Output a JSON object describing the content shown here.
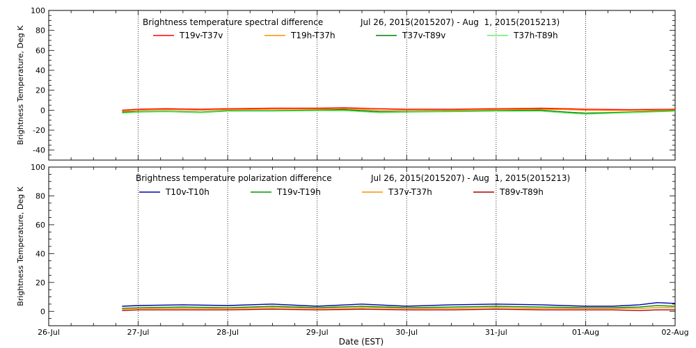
{
  "chart_data": [
    {
      "type": "line",
      "title": "Brightness temperature spectral difference",
      "date_range": "Jul 26, 2015(2015207) - Aug  1, 2015(2015213)",
      "ylabel": "Brightness Temperature, Deg K",
      "xlabel": "",
      "ylim": [
        -50,
        100
      ],
      "yticks": [
        -40,
        -20,
        0,
        20,
        40,
        60,
        80,
        100
      ],
      "xlim": [
        0,
        7
      ],
      "grid": "vertical dotted at day boundaries",
      "legend_position": "top",
      "series": [
        {
          "name": "T19v-T37v",
          "color": "#ff0000",
          "x": [
            0.82,
            1.0,
            1.3,
            1.7,
            2.0,
            2.5,
            3.0,
            3.3,
            3.7,
            4.0,
            4.5,
            5.0,
            5.5,
            5.8,
            6.0,
            6.5,
            7.0
          ],
          "values": [
            0,
            1,
            1.5,
            1,
            1.5,
            2,
            2,
            2.5,
            1.5,
            1,
            1,
            1.5,
            2,
            1.5,
            1,
            0.5,
            1
          ]
        },
        {
          "name": "T19h-T37h",
          "color": "#ff8c00",
          "x": [
            0.82,
            1.0,
            1.3,
            1.7,
            2.0,
            2.5,
            3.0,
            3.3,
            3.7,
            4.0,
            4.5,
            5.0,
            5.5,
            5.8,
            6.0,
            6.5,
            7.0
          ],
          "values": [
            -1,
            0,
            0.5,
            0,
            0.5,
            1,
            1,
            1.5,
            0,
            0,
            0,
            0.5,
            1,
            0.5,
            0,
            -0.5,
            0
          ]
        },
        {
          "name": "T37v-T89v",
          "color": "#008000",
          "x": [
            0.82,
            1.0,
            1.3,
            1.7,
            2.0,
            2.5,
            3.0,
            3.3,
            3.7,
            4.0,
            4.5,
            5.0,
            5.5,
            5.8,
            6.0,
            6.5,
            7.0
          ],
          "values": [
            -2,
            -1.5,
            -1,
            -2,
            -0.5,
            -0.5,
            0,
            0.5,
            -1.5,
            -1.5,
            -1,
            -0.5,
            0,
            -2,
            -3,
            -2,
            -0.5
          ]
        },
        {
          "name": "T37h-T89h",
          "color": "#66ee66",
          "x": [
            0.82,
            1.0,
            1.3,
            1.7,
            2.0,
            2.5,
            3.0,
            3.3,
            3.7,
            4.0,
            4.5,
            5.0,
            5.5,
            5.8,
            6.0,
            6.5,
            7.0
          ],
          "values": [
            -3,
            -2,
            -1.5,
            -2.5,
            -1,
            -1,
            -0.5,
            -0.5,
            -2.5,
            -2,
            -1.5,
            -1,
            -1,
            -3,
            -4,
            -2.5,
            -1
          ]
        }
      ]
    },
    {
      "type": "line",
      "title": "Brightness temperature polarization difference",
      "date_range": "Jul 26, 2015(2015207) - Aug  1, 2015(2015213)",
      "ylabel": "Brightness Temperature, Deg K",
      "xlabel": "Date (EST)",
      "ylim": [
        -10,
        100
      ],
      "yticks": [
        0,
        20,
        40,
        60,
        80,
        100
      ],
      "xlim": [
        0,
        7
      ],
      "categories": [
        "26-Jul",
        "27-Jul",
        "28-Jul",
        "29-Jul",
        "30-Jul",
        "31-Jul",
        "01-Aug",
        "02-Aug"
      ],
      "grid": "vertical dotted at day boundaries",
      "legend_position": "top",
      "series": [
        {
          "name": "T10v-T10h",
          "color": "#0000aa",
          "x": [
            0.82,
            1.0,
            1.5,
            2.0,
            2.5,
            3.0,
            3.5,
            4.0,
            4.5,
            5.0,
            5.5,
            6.0,
            6.3,
            6.6,
            6.8,
            7.0
          ],
          "values": [
            3.5,
            4,
            4.5,
            4,
            5,
            3.5,
            5,
            3.5,
            4.5,
            5,
            4.5,
            3.5,
            3.5,
            4.5,
            6,
            5.5
          ]
        },
        {
          "name": "T19v-T19h",
          "color": "#009900",
          "x": [
            0.82,
            1.0,
            1.5,
            2.0,
            2.5,
            3.0,
            3.5,
            4.0,
            4.5,
            5.0,
            5.5,
            6.0,
            6.3,
            6.6,
            6.8,
            7.0
          ],
          "values": [
            2,
            2.5,
            3,
            2.5,
            3.5,
            2.5,
            3.5,
            2.5,
            3,
            3.5,
            3,
            2.5,
            2.5,
            3,
            4,
            3.5
          ]
        },
        {
          "name": "T37v-T37h",
          "color": "#ff8c00",
          "x": [
            0.82,
            1.0,
            1.5,
            2.0,
            2.5,
            3.0,
            3.5,
            4.0,
            4.5,
            5.0,
            5.5,
            6.0,
            6.3,
            6.6,
            6.8,
            7.0
          ],
          "values": [
            1.5,
            2,
            2,
            2,
            2.5,
            2,
            2.5,
            2,
            2,
            2.5,
            2,
            2,
            2,
            2,
            2.5,
            2.5
          ]
        },
        {
          "name": "T89v-T89h",
          "color": "#aa0000",
          "x": [
            0.82,
            1.0,
            1.5,
            2.0,
            2.5,
            3.0,
            3.5,
            4.0,
            4.5,
            5.0,
            5.5,
            6.0,
            6.3,
            6.6,
            6.8,
            7.0
          ],
          "values": [
            0.5,
            1,
            1,
            1,
            1.5,
            1,
            1.5,
            1,
            1,
            1.5,
            1,
            1,
            1,
            0.5,
            1,
            1
          ]
        }
      ]
    }
  ]
}
